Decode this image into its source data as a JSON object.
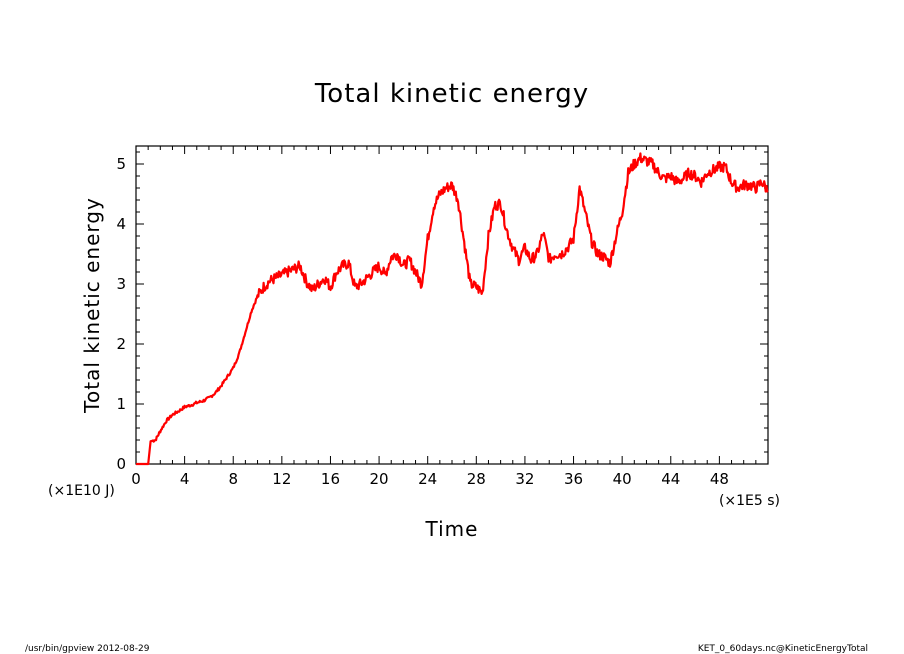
{
  "chart_data": {
    "type": "line",
    "title": "Total kinetic energy",
    "xlabel": "Time",
    "ylabel": "Total kinetic energy",
    "x_unit": "(×1E5 s)",
    "y_unit": "(×1E10 J)",
    "xlim": [
      0,
      52
    ],
    "ylim": [
      0,
      5.3
    ],
    "xticks": [
      "0",
      "4",
      "8",
      "12",
      "16",
      "20",
      "24",
      "28",
      "32",
      "36",
      "40",
      "44",
      "48"
    ],
    "yticks": [
      "0",
      "1",
      "2",
      "3",
      "4",
      "5"
    ],
    "grid": false,
    "color": "#ff0000",
    "series": [
      {
        "x": [
          0,
          0.5,
          1.0,
          1.2,
          1.6,
          2.0,
          2.5,
          3.0,
          3.5,
          4.0,
          4.5,
          5.0,
          5.5,
          6.0,
          6.5,
          7.0,
          7.5,
          8.0,
          8.5,
          9.0,
          9.5,
          10.0,
          10.5,
          11.0,
          11.5,
          12.0,
          12.5,
          13.0,
          13.5,
          14.0,
          14.5,
          15.0,
          15.5,
          16.0,
          16.5,
          17.0,
          17.5,
          18.0,
          18.5,
          19.0,
          19.5,
          20.0,
          20.5,
          21.0,
          21.5,
          22.0,
          22.5,
          23.0,
          23.5,
          24.0,
          24.5,
          25.0,
          25.5,
          26.0,
          26.5,
          27.0,
          27.5,
          28.0,
          28.5,
          29.0,
          29.5,
          30.0,
          30.5,
          31.0,
          31.5,
          32.0,
          32.5,
          33.0,
          33.5,
          34.0,
          34.5,
          35.0,
          35.5,
          36.0,
          36.5,
          37.0,
          37.5,
          38.0,
          38.5,
          39.0,
          39.5,
          40.0,
          40.5,
          41.0,
          41.5,
          42.0,
          42.5,
          43.0,
          43.5,
          44.0,
          44.5,
          45.0,
          45.5,
          46.0,
          46.5,
          47.0,
          47.5,
          48.0,
          48.5,
          49.0,
          49.5,
          50.0,
          50.5,
          51.0,
          51.5,
          52.0
        ],
        "y": [
          0,
          0,
          0,
          0.38,
          0.4,
          0.55,
          0.72,
          0.82,
          0.88,
          0.95,
          0.98,
          1.02,
          1.05,
          1.1,
          1.18,
          1.3,
          1.45,
          1.6,
          1.85,
          2.2,
          2.55,
          2.8,
          2.95,
          3.05,
          3.1,
          3.15,
          3.2,
          3.25,
          3.3,
          3.05,
          2.9,
          3.0,
          3.1,
          2.95,
          3.2,
          3.3,
          3.35,
          2.95,
          3.0,
          3.1,
          3.2,
          3.3,
          3.15,
          3.45,
          3.5,
          3.3,
          3.4,
          3.2,
          3.0,
          3.75,
          4.3,
          4.5,
          4.6,
          4.65,
          4.4,
          3.7,
          3.0,
          2.95,
          2.85,
          3.8,
          4.3,
          4.35,
          3.9,
          3.6,
          3.4,
          3.6,
          3.4,
          3.5,
          3.85,
          3.4,
          3.5,
          3.5,
          3.6,
          3.75,
          4.6,
          4.15,
          3.7,
          3.5,
          3.45,
          3.35,
          3.8,
          4.2,
          4.85,
          5.0,
          5.1,
          5.05,
          5.0,
          4.85,
          4.75,
          4.8,
          4.7,
          4.75,
          4.85,
          4.8,
          4.7,
          4.85,
          4.9,
          4.95,
          4.95,
          4.7,
          4.6,
          4.65,
          4.65,
          4.6,
          4.7,
          4.55
        ]
      }
    ]
  },
  "footer": {
    "left": "/usr/bin/gpview  2012-08-29",
    "right": "KET_0_60days.nc@KineticEnergyTotal"
  }
}
